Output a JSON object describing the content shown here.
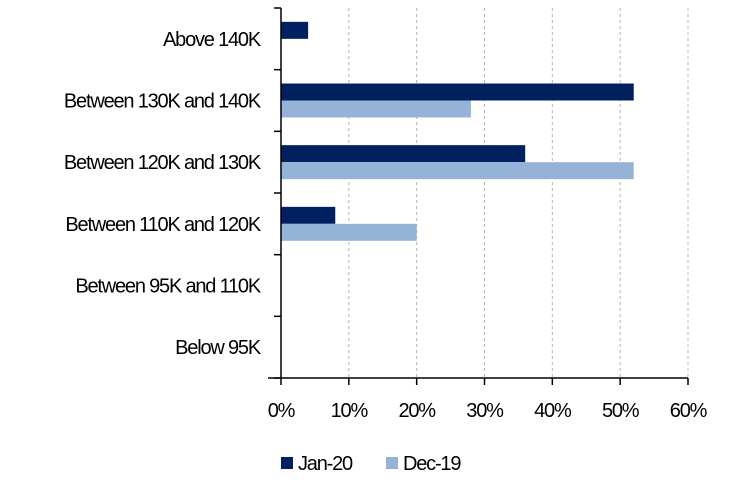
{
  "chart_data": {
    "type": "bar",
    "orientation": "horizontal",
    "title": "",
    "xlabel": "",
    "ylabel": "",
    "categories": [
      "Above 140K",
      "Between 130K and 140K",
      "Between 120K and 130K",
      "Between 110K and 120K",
      "Between 95K and 110K",
      "Below 95K"
    ],
    "series": [
      {
        "name": "Jan-20",
        "color": "#002060",
        "values": [
          4,
          52,
          36,
          8,
          0,
          0
        ]
      },
      {
        "name": "Dec-19",
        "color": "#95B3D7",
        "values": [
          0,
          28,
          52,
          20,
          0,
          0
        ]
      }
    ],
    "xlim": [
      0,
      60
    ],
    "xticks": [
      0,
      10,
      20,
      30,
      40,
      50,
      60
    ],
    "xtick_labels": [
      "0%",
      "10%",
      "20%",
      "30%",
      "40%",
      "50%",
      "60%"
    ],
    "grid": "vertical-dashed",
    "legend_position": "bottom"
  }
}
